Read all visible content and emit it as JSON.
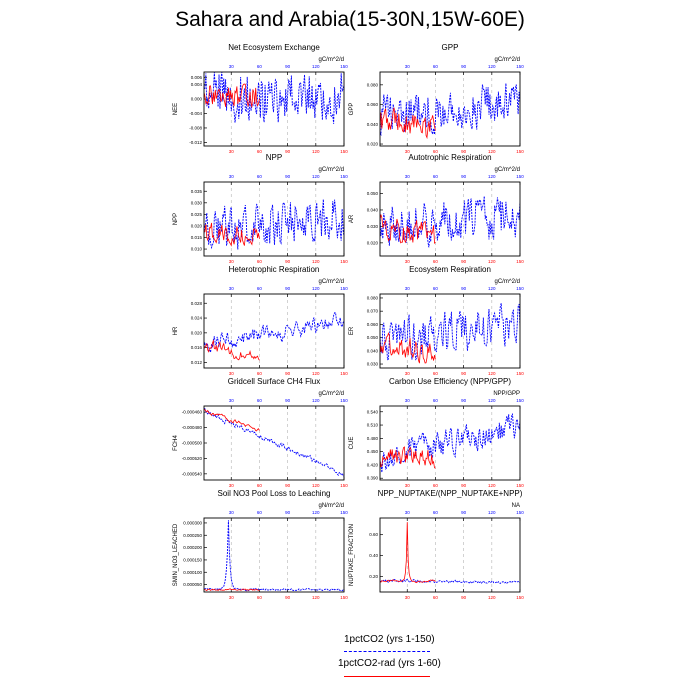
{
  "page_title": "Sahara and Arabia(15-30N,15W-60E)",
  "colors": {
    "run_1": "#0000ff",
    "run_2": "#ff0000",
    "grid": "#b4b4b4"
  },
  "legend": {
    "items": [
      {
        "label": "1pctCO2 (yrs 1-150)",
        "color": "#0000ff",
        "style": "dashed"
      },
      {
        "label": "1pctCO2-rad (yrs 1-60)",
        "color": "#ff0000",
        "style": "solid"
      }
    ]
  },
  "chart_data": [
    {
      "type": "line",
      "title": "Net Ecosystem Exchange",
      "ylabel": "NEE",
      "units": "gC/m^2/d",
      "xlim": [
        1,
        150
      ],
      "ylim": [
        -0.013,
        0.0075
      ],
      "yticks": [
        -0.012,
        -0.008,
        -0.004,
        0.0,
        0.004,
        0.006
      ],
      "ytick_labels": [
        "-0.012",
        "-0.008",
        "-0.004",
        "0.000",
        "0.004",
        "0.006"
      ],
      "xticks": [
        30,
        60,
        90,
        120,
        150
      ],
      "grid": "vertical dashed",
      "series": [
        {
          "color": "#0000ff",
          "length": 150,
          "base": 0.001,
          "trend": 0.0,
          "amp": 0.005,
          "smooth": 0.25
        },
        {
          "color": "#ff0000",
          "length": 60,
          "base": 0.001,
          "trend": 0.0,
          "amp": 0.0022,
          "smooth": 0.25
        }
      ]
    },
    {
      "type": "line",
      "title": "GPP",
      "ylabel": "GPP",
      "units": "gC/m^2/d",
      "xlim": [
        1,
        150
      ],
      "ylim": [
        0.018,
        0.093
      ],
      "yticks": [
        0.02,
        0.04,
        0.06,
        0.08
      ],
      "ytick_labels": [
        "0.020",
        "0.040",
        "0.060",
        "0.080"
      ],
      "xticks": [
        30,
        60,
        90,
        120,
        150
      ],
      "grid": "vertical dashed",
      "series": [
        {
          "color": "#0000ff",
          "length": 150,
          "base": 0.05,
          "trend": 0.012,
          "amp": 0.016,
          "smooth": 0.3
        },
        {
          "color": "#ff0000",
          "length": 60,
          "base": 0.045,
          "trend": -0.01,
          "amp": 0.009,
          "smooth": 0.3
        }
      ]
    },
    {
      "type": "line",
      "title": "NPP",
      "ylabel": "NPP",
      "units": "gC/m^2/d",
      "xlim": [
        1,
        150
      ],
      "ylim": [
        0.007,
        0.039
      ],
      "yticks": [
        0.01,
        0.015,
        0.02,
        0.025,
        0.03,
        0.035
      ],
      "ytick_labels": [
        "0.010",
        "0.015",
        "0.020",
        "0.025",
        "0.030",
        "0.035"
      ],
      "xticks": [
        30,
        60,
        90,
        120,
        150
      ],
      "grid": "vertical dashed",
      "series": [
        {
          "color": "#0000ff",
          "length": 150,
          "base": 0.018,
          "trend": 0.006,
          "amp": 0.007,
          "smooth": 0.3
        },
        {
          "color": "#ff0000",
          "length": 60,
          "base": 0.018,
          "trend": -0.003,
          "amp": 0.003,
          "smooth": 0.3
        }
      ]
    },
    {
      "type": "line",
      "title": "Autotrophic Respiration",
      "ylabel": "AR",
      "units": "gC/m^2/d",
      "xlim": [
        1,
        150
      ],
      "ylim": [
        0.012,
        0.057
      ],
      "yticks": [
        0.02,
        0.03,
        0.04,
        0.05
      ],
      "ytick_labels": [
        "0.020",
        "0.030",
        "0.040",
        "0.050"
      ],
      "xticks": [
        30,
        60,
        90,
        120,
        150
      ],
      "grid": "vertical dashed",
      "series": [
        {
          "color": "#0000ff",
          "length": 150,
          "base": 0.03,
          "trend": 0.007,
          "amp": 0.01,
          "smooth": 0.3
        },
        {
          "color": "#ff0000",
          "length": 60,
          "base": 0.03,
          "trend": -0.006,
          "amp": 0.005,
          "smooth": 0.3
        }
      ]
    },
    {
      "type": "line",
      "title": "Heterotrophic Respiration",
      "ylabel": "HR",
      "units": "gC/m^2/d",
      "xlim": [
        1,
        150
      ],
      "ylim": [
        0.0105,
        0.0305
      ],
      "yticks": [
        0.012,
        0.016,
        0.02,
        0.024,
        0.028
      ],
      "ytick_labels": [
        "0.012",
        "0.016",
        "0.020",
        "0.024",
        "0.028"
      ],
      "xticks": [
        30,
        60,
        90,
        120,
        150
      ],
      "grid": "vertical dashed",
      "series": [
        {
          "color": "#0000ff",
          "length": 150,
          "base": 0.017,
          "trend": 0.006,
          "amp": 0.002,
          "smooth": 0.5
        },
        {
          "color": "#ff0000",
          "length": 60,
          "base": 0.0165,
          "trend": -0.003,
          "amp": 0.0015,
          "smooth": 0.5
        }
      ]
    },
    {
      "type": "line",
      "title": "Ecosystem Respiration",
      "ylabel": "ER",
      "units": "gC/m^2/d",
      "xlim": [
        1,
        150
      ],
      "ylim": [
        0.027,
        0.083
      ],
      "yticks": [
        0.03,
        0.04,
        0.05,
        0.06,
        0.07,
        0.08
      ],
      "ytick_labels": [
        "0.030",
        "0.040",
        "0.050",
        "0.060",
        "0.070",
        "0.080"
      ],
      "xticks": [
        30,
        60,
        90,
        120,
        150
      ],
      "grid": "vertical dashed",
      "series": [
        {
          "color": "#0000ff",
          "length": 150,
          "base": 0.048,
          "trend": 0.012,
          "amp": 0.012,
          "smooth": 0.3
        },
        {
          "color": "#ff0000",
          "length": 60,
          "base": 0.046,
          "trend": -0.008,
          "amp": 0.006,
          "smooth": 0.3
        }
      ]
    },
    {
      "type": "line",
      "title": "Gridcell Surface CH4 Flux",
      "ylabel": "FCH4",
      "units": "gC/m^2/d",
      "xlim": [
        1,
        150
      ],
      "ylim": [
        -0.000548,
        -0.000452
      ],
      "yticks": [
        -0.00046,
        -0.00048,
        -0.0005,
        -0.00052,
        -0.00054
      ],
      "ytick_labels": [
        "-0.000460",
        "-0.000480",
        "-0.000500",
        "-0.000520",
        "-0.000540"
      ],
      "xticks": [
        30,
        60,
        90,
        120,
        150
      ],
      "grid": "vertical dashed",
      "series": [
        {
          "color": "#0000ff",
          "length": 150,
          "base": -0.000458,
          "trend": -8.2e-05,
          "amp": 4e-06,
          "smooth": 0.6
        },
        {
          "color": "#ff0000",
          "length": 60,
          "base": -0.000458,
          "trend": -2.5e-05,
          "amp": 3e-06,
          "smooth": 0.6
        }
      ]
    },
    {
      "type": "line",
      "title": "Carbon Use Efficiency (NPP/GPP)",
      "ylabel": "CUE",
      "units": "NPP/GPP",
      "xlim": [
        1,
        150
      ],
      "ylim": [
        0.386,
        0.553
      ],
      "yticks": [
        0.39,
        0.42,
        0.45,
        0.48,
        0.51,
        0.54
      ],
      "ytick_labels": [
        "0.390",
        "0.420",
        "0.450",
        "0.480",
        "0.510",
        "0.540"
      ],
      "xticks": [
        30,
        60,
        90,
        120,
        150
      ],
      "grid": "vertical dashed",
      "series": [
        {
          "color": "#0000ff",
          "length": 150,
          "base": 0.435,
          "trend": 0.075,
          "amp": 0.025,
          "smooth": 0.4
        },
        {
          "color": "#ff0000",
          "length": 60,
          "base": 0.435,
          "trend": 0.0,
          "amp": 0.018,
          "smooth": 0.4
        }
      ]
    },
    {
      "type": "line",
      "title": "Soil NO3 Pool Loss to Leaching",
      "ylabel": "SMIN_NO3_LEACHED",
      "units": "gN/m^2/d",
      "xlim": [
        1,
        150
      ],
      "ylim": [
        2e-05,
        0.00032
      ],
      "yticks": [
        5e-05,
        0.0001,
        0.00015,
        0.0002,
        0.00025,
        0.0003
      ],
      "ytick_labels": [
        "0.000050",
        "0.000100",
        "0.000150",
        "0.000200",
        "0.000250",
        "0.000300"
      ],
      "xticks": [
        30,
        60,
        90,
        120,
        150
      ],
      "grid": "vertical dashed",
      "series": [
        {
          "color": "#0000ff",
          "length": 150,
          "base": 3e-05,
          "trend": 0.0,
          "amp": 4e-06,
          "smooth": 0.5,
          "spike": {
            "x": 27,
            "peak": 0.000315,
            "decay": 0.55
          }
        },
        {
          "color": "#ff0000",
          "length": 60,
          "base": 2.9e-05,
          "trend": 0.0,
          "amp": 3e-06,
          "smooth": 0.5
        }
      ]
    },
    {
      "type": "line",
      "title": "NPP_NUPTAKE/(NPP_NUPTAKE+NPP)",
      "ylabel": "NUPTAKE_FRACTION",
      "units": "NA",
      "xlim": [
        1,
        150
      ],
      "ylim": [
        0.05,
        0.76
      ],
      "yticks": [
        0.2,
        0.4,
        0.6
      ],
      "ytick_labels": [
        "0.20",
        "0.40",
        "0.60"
      ],
      "xticks": [
        30,
        60,
        90,
        120,
        150
      ],
      "grid": "vertical dashed",
      "series": [
        {
          "color": "#0000ff",
          "length": 150,
          "base": 0.16,
          "trend": -0.02,
          "amp": 0.012,
          "smooth": 0.5
        },
        {
          "color": "#ff0000",
          "length": 60,
          "base": 0.155,
          "trend": 0.0,
          "amp": 0.01,
          "smooth": 0.5,
          "spike": {
            "x": 30,
            "peak": 0.73,
            "decay": 0.35
          }
        }
      ]
    }
  ]
}
